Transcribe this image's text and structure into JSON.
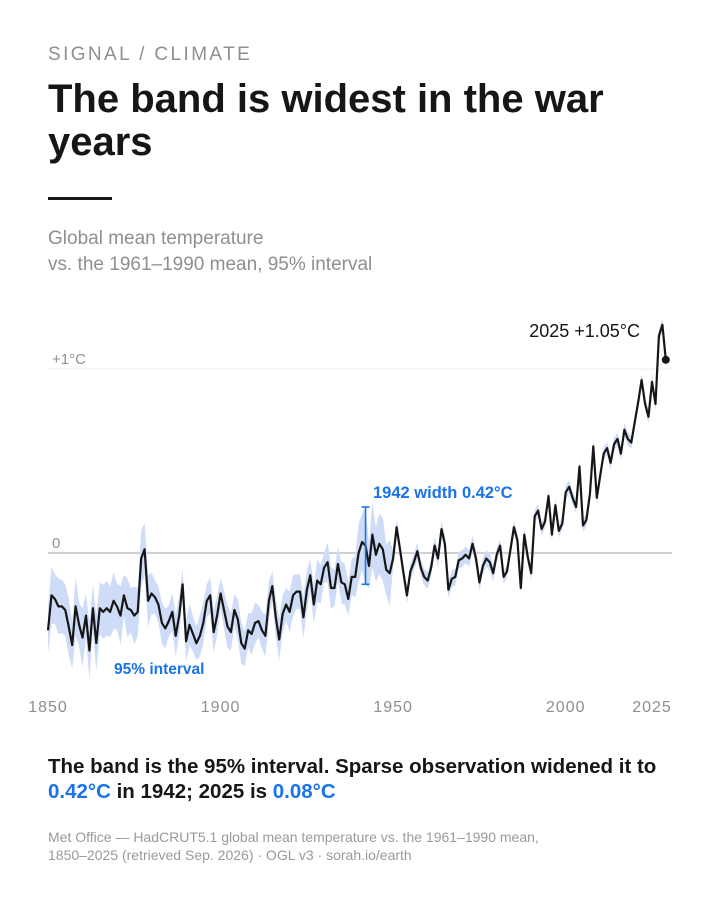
{
  "kicker": "SIGNAL / CLIMATE",
  "title": "The band is widest in the war years",
  "subtitle_line1": "Global mean temperature",
  "subtitle_line2": "vs. the 1961–1990 mean, 95% interval",
  "caption": {
    "part1": "The band is the 95% interval. Sparse observation widened it to ",
    "highlight1": "0.42°C",
    "part2": " in 1942; 2025 is ",
    "highlight2": "0.08°C"
  },
  "source_line1": "Met Office — HadCRUT5.1 global mean temperature vs. the 1961–1990 mean,",
  "source_line2": "1850–2025 (retrieved Sep. 2026) · OGL v3 · sorah.io/earth",
  "colors": {
    "line": "#161616",
    "band": "#cfdcf7",
    "accent": "#1a73e8",
    "zero_line": "#b5b5b5",
    "gridline": "#ececec",
    "muted_text": "#8f8f8f"
  },
  "chart_data": {
    "type": "line",
    "x_label": "",
    "y_label": "",
    "xlim": [
      1850,
      2025
    ],
    "ylim": [
      -0.8,
      1.15
    ],
    "x_ticks": [
      1850,
      1900,
      1950,
      2000,
      2025
    ],
    "x_tick_labels": [
      "1850",
      "1900",
      "1950",
      "2000",
      "2025"
    ],
    "y_ticks": [
      0,
      1
    ],
    "y_tick_labels": [
      "0",
      "+1°C"
    ],
    "grid": "horizontal at 0 and +1°C",
    "legend": "none",
    "annotations": {
      "end_label": "2025 +1.05°C",
      "war_label": "1942 width 0.42°C",
      "war_year": 1942,
      "war_width": 0.42,
      "band_label": "95% interval"
    },
    "series": [
      {
        "start_year": 1850,
        "values": [
          -0.42,
          -0.23,
          -0.25,
          -0.29,
          -0.29,
          -0.31,
          -0.4,
          -0.5,
          -0.29,
          -0.39,
          -0.46,
          -0.34,
          -0.53,
          -0.3,
          -0.49,
          -0.3,
          -0.32,
          -0.3,
          -0.32,
          -0.26,
          -0.29,
          -0.34,
          -0.23,
          -0.3,
          -0.31,
          -0.34,
          -0.32,
          -0.03,
          0.02,
          -0.26,
          -0.22,
          -0.24,
          -0.28,
          -0.38,
          -0.41,
          -0.37,
          -0.32,
          -0.45,
          -0.34,
          -0.17,
          -0.48,
          -0.39,
          -0.44,
          -0.49,
          -0.45,
          -0.38,
          -0.26,
          -0.23,
          -0.43,
          -0.34,
          -0.22,
          -0.31,
          -0.4,
          -0.43,
          -0.31,
          -0.36,
          -0.49,
          -0.52,
          -0.42,
          -0.44,
          -0.38,
          -0.37,
          -0.42,
          -0.45,
          -0.26,
          -0.18,
          -0.35,
          -0.47,
          -0.33,
          -0.28,
          -0.32,
          -0.23,
          -0.21,
          -0.21,
          -0.35,
          -0.2,
          -0.12,
          -0.28,
          -0.15,
          -0.17,
          -0.08,
          -0.05,
          -0.19,
          -0.19,
          -0.06,
          -0.16,
          -0.17,
          -0.25,
          -0.13,
          -0.13,
          0,
          0.06,
          0.04,
          -0.07,
          0.1,
          -0.01,
          0.05,
          0.02,
          -0.09,
          -0.11,
          -0.03,
          0.14,
          0.02,
          -0.11,
          -0.23,
          -0.1,
          -0.05,
          0.01,
          -0.08,
          -0.13,
          -0.15,
          -0.08,
          0.04,
          -0.03,
          0.13,
          0.05,
          -0.2,
          -0.14,
          -0.13,
          -0.04,
          -0.03,
          -0.01,
          -0.03,
          0.05,
          -0.03,
          -0.16,
          -0.07,
          -0.03,
          -0.05,
          -0.11,
          -0.01,
          0.04,
          -0.13,
          -0.1,
          0.02,
          0.14,
          0.07,
          -0.19,
          0.1,
          -0.02,
          -0.11,
          0.2,
          0.23,
          0.13,
          0.17,
          0.31,
          0.1,
          0.26,
          0.12,
          0.16,
          0.33,
          0.36,
          0.3,
          0.25,
          0.47,
          0.15,
          0.18,
          0.32,
          0.58,
          0.3,
          0.42,
          0.54,
          0.57,
          0.49,
          0.59,
          0.62,
          0.54,
          0.67,
          0.62,
          0.6,
          0.71,
          0.82,
          0.94,
          0.81,
          0.74,
          0.93,
          0.81,
          1.18,
          1.24,
          1.05
        ]
      }
    ],
    "band_half_width_default": 0.05,
    "band_half_width_by_year": {
      "1942": 0.21,
      "2025": 0.04
    }
  }
}
